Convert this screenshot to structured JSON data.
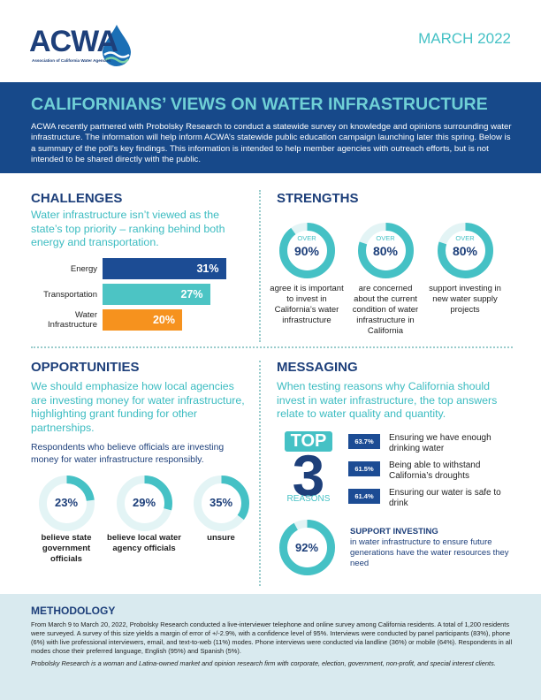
{
  "header": {
    "logo": "ACWA",
    "logo_subtitle": "Association of California Water Agencies",
    "date": "MARCH 2022"
  },
  "banner": {
    "title": "CALIFORNIANS’ VIEWS ON WATER INFRASTRUCTURE",
    "intro": "ACWA recently partnered with Probolsky Research to conduct a statewide survey on knowledge and opinions surrounding water infrastructure. The information will help inform ACWA’s statewide public education campaign launching later this spring. Below is a summary of the poll’s key findings. This information is intended to help member agencies with outreach efforts, but is not intended to be shared directly with the public."
  },
  "challenges": {
    "heading": "CHALLENGES",
    "lead": "Water infrastructure isn’t viewed as the state’s top priority – ranking behind both energy and transportation.",
    "bars": [
      {
        "label": "Energy",
        "value": 31,
        "value_label": "31%",
        "color": "#1c4c94"
      },
      {
        "label": "Transportation",
        "value": 27,
        "value_label": "27%",
        "color": "#4cc4c4"
      },
      {
        "label": "Water Infrastructure",
        "value": 20,
        "value_label": "20%",
        "color": "#f6921e"
      }
    ]
  },
  "strengths": {
    "heading": "STRENGTHS",
    "items": [
      {
        "prefix": "OVER",
        "value": 90,
        "value_label": "90%",
        "caption": "agree it is important to invest in California’s water infrastructure"
      },
      {
        "prefix": "OVER",
        "value": 80,
        "value_label": "80%",
        "caption": "are concerned about the current condition of water infrastructure in California"
      },
      {
        "prefix": "OVER",
        "value": 80,
        "value_label": "80%",
        "caption": "support investing in new water supply projects"
      }
    ]
  },
  "opportunities": {
    "heading": "OPPORTUNITIES",
    "lead": "We should emphasize how local agencies are investing money for water infrastructure, highlighting grant funding for other partnerships.",
    "subhead": "Respondents who believe officials are investing money for water infrastructure responsibly.",
    "items": [
      {
        "value": 23,
        "value_label": "23%",
        "caption": "believe state government officials"
      },
      {
        "value": 29,
        "value_label": "29%",
        "caption": "believe local water agency officials"
      },
      {
        "value": 35,
        "value_label": "35%",
        "caption": "unsure"
      }
    ]
  },
  "messaging": {
    "heading": "MESSAGING",
    "lead": "When testing reasons why California should invest in water infrastructure, the top answers relate to water quality and quantity.",
    "top": {
      "word": "TOP",
      "number": "3",
      "caption": "REASONS"
    },
    "reasons": [
      {
        "value": 63.7,
        "value_label": "63.7%",
        "text": "Ensuring we have enough drinking water"
      },
      {
        "value": 61.5,
        "value_label": "61.5%",
        "text": "Being able to withstand California’s droughts"
      },
      {
        "value": 61.4,
        "value_label": "61.4%",
        "text": "Ensuring our water is safe to drink"
      }
    ],
    "support": {
      "value": 92,
      "value_label": "92%",
      "heading": "SUPPORT INVESTING",
      "text": "in water infrastructure to ensure future generations have the water resources they need"
    }
  },
  "methodology": {
    "heading": "METHODOLOGY",
    "body": "From March 9 to March 20, 2022, Probolsky Research conducted a live-interviewer telephone and online survey among California residents. A total of 1,200 residents were surveyed. A survey of this size yields a margin of error of +/-2.9%, with a confidence level of 95%. Interviews were conducted by panel participants (83%), phone (6%) with live professional interviewers, email, and text-to-web (11%) modes. Phone interviews were conducted via landline (36%) or mobile (64%). Respondents in all modes chose their preferred language, English (95%) and Spanish (5%).",
    "note": "Probolsky Research is a woman and Latina-owned market and opinion research firm with corporate, election, government, non-profit, and special interest clients."
  }
}
